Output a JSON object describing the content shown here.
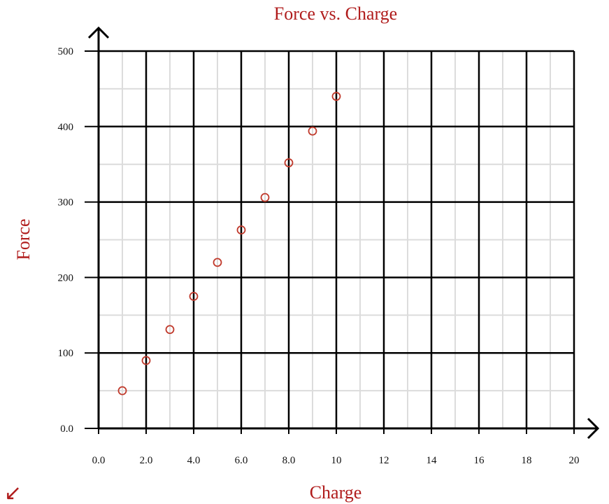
{
  "chart_data": {
    "type": "scatter",
    "title": "Force vs. Charge",
    "xlabel": "Charge",
    "ylabel": "Force",
    "xlim": [
      0,
      20
    ],
    "ylim": [
      0,
      500
    ],
    "x_ticks": [
      "0.0",
      "2.0",
      "4.0",
      "6.0",
      "8.0",
      "10",
      "12",
      "14",
      "16",
      "18",
      "20"
    ],
    "y_ticks": [
      "0.0",
      "100",
      "200",
      "300",
      "400",
      "500"
    ],
    "grid": true,
    "series": [
      {
        "x": [
          1,
          2,
          3,
          4,
          5,
          6,
          7,
          8,
          9,
          10
        ],
        "y": [
          50,
          90,
          131,
          175,
          220,
          263,
          306,
          352,
          394,
          440
        ]
      }
    ],
    "marker_color": "#c0392b",
    "text_color": "#b01c1c"
  },
  "icons": {
    "corner": "arrow-down-left-icon",
    "corner_glyph": "↙"
  }
}
